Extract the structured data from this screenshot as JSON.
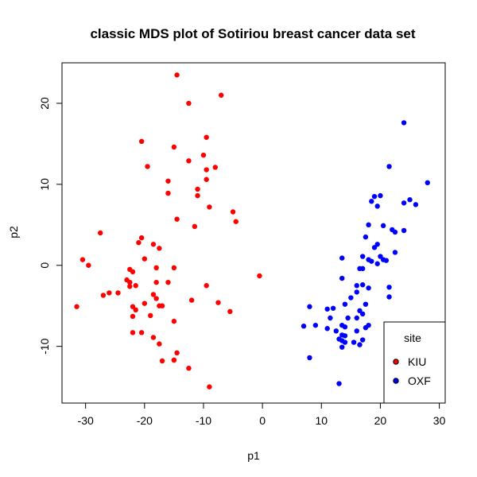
{
  "chart_data": {
    "type": "scatter",
    "title": "classic MDS plot of Sotiriou breast cancer data set",
    "xlabel": "p1",
    "ylabel": "p2",
    "xlim": [
      -34,
      31
    ],
    "ylim": [
      -17,
      25
    ],
    "xticks": [
      -30,
      -20,
      -10,
      0,
      10,
      20,
      30
    ],
    "yticks": [
      -10,
      0,
      10,
      20
    ],
    "legend": {
      "title": "site",
      "position": "bottom-right",
      "entries": [
        "KIU",
        "OXF"
      ]
    },
    "series": [
      {
        "name": "KIU",
        "color": "#ff0000",
        "x": [
          -14.5,
          -9.5,
          -7,
          -12.5,
          -20.5,
          -15,
          -19.5,
          -12.5,
          -10,
          -9.5,
          -8,
          -9.5,
          -16,
          -16,
          -11,
          -11,
          -14.5,
          -9,
          -5,
          -4.5,
          -11.5,
          -27.5,
          -20.5,
          -21,
          -18.5,
          -17.5,
          -30.5,
          -29.5,
          -20,
          -18,
          -22.5,
          -22,
          -23,
          -22.5,
          -26,
          -24.5,
          -27,
          -15,
          -16,
          -18,
          -21.5,
          -22.5,
          -22,
          -20,
          -18,
          -18.5,
          -17,
          -17.5,
          -21.5,
          -12,
          -9.5,
          -0.5,
          -7.5,
          -5.5,
          -31.5,
          -22,
          -15,
          -19,
          -20.5,
          -22,
          -18.5,
          -17.5,
          -14.5,
          -15,
          -17,
          -15,
          -12.5,
          -9
        ],
        "y": [
          23.5,
          15.8,
          21,
          20,
          15.3,
          14.6,
          12.2,
          12.9,
          13.6,
          11.8,
          12.1,
          10.6,
          10.4,
          8.9,
          9.4,
          8.6,
          5.7,
          7.2,
          6.6,
          5.4,
          4.8,
          4,
          3.4,
          2.8,
          2.6,
          2.1,
          0.7,
          0,
          0.8,
          -0.3,
          -0.5,
          -0.8,
          -1.8,
          -2.1,
          -3.4,
          -3.4,
          -3.7,
          -0.3,
          -2.1,
          -2.1,
          -2.5,
          -2.6,
          -5.1,
          -4.7,
          -4.1,
          -3.6,
          -5,
          -5,
          -5.5,
          -4.3,
          -2.5,
          -1.3,
          -4.6,
          -5.7,
          -5.1,
          -6.3,
          -6.9,
          -6.2,
          -8.3,
          -8.3,
          -8.9,
          -9.7,
          -10.8,
          -11.7,
          -11.8,
          -11.7,
          -12.7,
          -15
        ]
      },
      {
        "name": "OXF",
        "color": "#0000ff",
        "x": [
          24,
          21.5,
          28,
          20,
          19,
          18.5,
          25,
          24,
          26,
          19.5,
          22,
          22.5,
          24,
          20.5,
          18,
          17.5,
          19.5,
          19,
          17,
          22.5,
          21,
          20,
          20.5,
          18.5,
          19.5,
          18,
          16.5,
          17,
          13.5,
          13.5,
          16,
          21.5,
          18,
          17,
          16,
          15,
          21.5,
          17.5,
          14,
          12,
          11,
          8,
          11.5,
          14.5,
          16.5,
          17,
          18,
          17.5,
          13.5,
          9,
          11,
          7,
          14,
          13.5,
          13.5,
          13,
          12.5,
          14,
          15.5,
          16.5,
          17,
          16,
          16,
          14,
          13.5,
          8,
          13
        ],
        "y": [
          17.6,
          12.2,
          10.2,
          8.6,
          8.5,
          7.9,
          8.1,
          7.7,
          7.5,
          7.3,
          4.4,
          4.1,
          4.3,
          4.9,
          5,
          3.5,
          2.6,
          2.2,
          1.1,
          1.6,
          0.6,
          1.1,
          0.7,
          0.5,
          0.2,
          0.7,
          -0.4,
          -0.4,
          0.9,
          -1.6,
          -2.5,
          -2.7,
          -2.8,
          -2.4,
          -3.3,
          -4,
          -3.9,
          -4.8,
          -4.8,
          -5.3,
          -5.4,
          -5.1,
          -6.5,
          -6.5,
          -5.6,
          -6,
          -7.4,
          -7.7,
          -7.4,
          -7.4,
          -7.8,
          -7.5,
          -7.6,
          -8.6,
          -9.3,
          -9.1,
          -8.1,
          -8.7,
          -9.5,
          -9.8,
          -9.2,
          -8.1,
          -6.5,
          -9.5,
          -10.1,
          -11.4,
          -14.6
        ]
      }
    ]
  }
}
